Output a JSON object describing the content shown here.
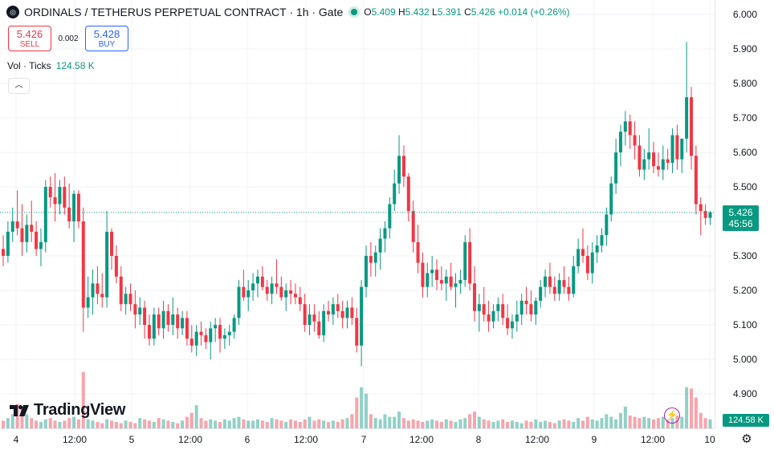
{
  "header": {
    "symbol_icon": "coin-icon",
    "title": "ORDINALS / TETHERUS PERPETUAL CONTRACT · 1h · Gate",
    "ohlc": {
      "o_label": "O",
      "o": "5.409",
      "h_label": "H",
      "h": "5.432",
      "l_label": "L",
      "l": "5.391",
      "c_label": "C",
      "c": "5.426",
      "change": "+0.014 (+0.26%)"
    }
  },
  "trade": {
    "sell_price": "5.426",
    "sell_label": "SELL",
    "spread": "0.002",
    "buy_price": "5.428",
    "buy_label": "BUY"
  },
  "volume": {
    "label": "Vol · Ticks",
    "value": "124.58 K"
  },
  "collapse_icon": "chevron-up-icon",
  "logo": {
    "text": "TradingView",
    "icon": "tradingview-logo-icon"
  },
  "price_tag": {
    "price": "5.426",
    "countdown": "45:56"
  },
  "volume_tag": "124.58 K",
  "settings_icon": "gear-icon",
  "replay_icon": "lightning-icon",
  "colors": {
    "up": "#089981",
    "down": "#f23645",
    "grid": "#f0f3fa",
    "text": "#131722"
  },
  "chart_data": {
    "type": "candlestick",
    "y_axis": {
      "ticks": [
        "6.000",
        "5.900",
        "5.800",
        "5.700",
        "5.600",
        "5.500",
        "5.400",
        "5.300",
        "5.200",
        "5.100",
        "5.000",
        "4.900"
      ],
      "range": [
        4.82,
        6.04
      ]
    },
    "x_axis": {
      "ticks": [
        "4",
        "12:00",
        "5",
        "12:00",
        "6",
        "12:00",
        "7",
        "12:00",
        "8",
        "12:00",
        "9",
        "12:00",
        "10"
      ]
    },
    "candles_ohlc": [
      [
        5.32,
        5.36,
        5.27,
        5.3
      ],
      [
        5.3,
        5.4,
        5.28,
        5.37
      ],
      [
        5.37,
        5.44,
        5.34,
        5.4
      ],
      [
        5.4,
        5.49,
        5.36,
        5.38
      ],
      [
        5.38,
        5.45,
        5.3,
        5.34
      ],
      [
        5.34,
        5.42,
        5.31,
        5.39
      ],
      [
        5.39,
        5.46,
        5.34,
        5.37
      ],
      [
        5.37,
        5.4,
        5.3,
        5.32
      ],
      [
        5.32,
        5.38,
        5.27,
        5.34
      ],
      [
        5.34,
        5.52,
        5.31,
        5.5
      ],
      [
        5.5,
        5.53,
        5.44,
        5.47
      ],
      [
        5.47,
        5.54,
        5.4,
        5.45
      ],
      [
        5.45,
        5.52,
        5.42,
        5.5
      ],
      [
        5.5,
        5.53,
        5.42,
        5.44
      ],
      [
        5.44,
        5.51,
        5.38,
        5.4
      ],
      [
        5.4,
        5.49,
        5.34,
        5.48
      ],
      [
        5.48,
        5.49,
        5.38,
        5.4
      ],
      [
        5.4,
        5.44,
        5.08,
        5.15
      ],
      [
        5.15,
        5.24,
        5.12,
        5.18
      ],
      [
        5.18,
        5.26,
        5.13,
        5.22
      ],
      [
        5.22,
        5.27,
        5.16,
        5.19
      ],
      [
        5.19,
        5.25,
        5.15,
        5.18
      ],
      [
        5.18,
        5.43,
        5.15,
        5.37
      ],
      [
        5.37,
        5.38,
        5.26,
        5.3
      ],
      [
        5.3,
        5.33,
        5.22,
        5.24
      ],
      [
        5.24,
        5.27,
        5.14,
        5.16
      ],
      [
        5.16,
        5.21,
        5.13,
        5.19
      ],
      [
        5.19,
        5.22,
        5.14,
        5.16
      ],
      [
        5.16,
        5.2,
        5.09,
        5.13
      ],
      [
        5.13,
        5.18,
        5.1,
        5.15
      ],
      [
        5.15,
        5.17,
        5.06,
        5.1
      ],
      [
        5.1,
        5.13,
        5.04,
        5.06
      ],
      [
        5.06,
        5.15,
        5.04,
        5.13
      ],
      [
        5.13,
        5.15,
        5.07,
        5.09
      ],
      [
        5.09,
        5.17,
        5.06,
        5.14
      ],
      [
        5.14,
        5.16,
        5.08,
        5.1
      ],
      [
        5.1,
        5.18,
        5.07,
        5.13
      ],
      [
        5.13,
        5.15,
        5.06,
        5.09
      ],
      [
        5.09,
        5.14,
        5.07,
        5.12
      ],
      [
        5.12,
        5.14,
        5.04,
        5.06
      ],
      [
        5.06,
        5.1,
        5.02,
        5.04
      ],
      [
        5.04,
        5.1,
        5.01,
        5.08
      ],
      [
        5.08,
        5.11,
        5.04,
        5.07
      ],
      [
        5.07,
        5.09,
        5.03,
        5.05
      ],
      [
        5.05,
        5.11,
        5.0,
        5.09
      ],
      [
        5.09,
        5.12,
        5.05,
        5.1
      ],
      [
        5.1,
        5.12,
        5.02,
        5.06
      ],
      [
        5.06,
        5.09,
        5.03,
        5.07
      ],
      [
        5.07,
        5.1,
        5.04,
        5.08
      ],
      [
        5.08,
        5.13,
        5.06,
        5.12
      ],
      [
        5.12,
        5.23,
        5.1,
        5.21
      ],
      [
        5.21,
        5.26,
        5.17,
        5.18
      ],
      [
        5.18,
        5.23,
        5.14,
        5.2
      ],
      [
        5.2,
        5.25,
        5.17,
        5.22
      ],
      [
        5.22,
        5.26,
        5.18,
        5.24
      ],
      [
        5.24,
        5.27,
        5.2,
        5.21
      ],
      [
        5.21,
        5.23,
        5.17,
        5.19
      ],
      [
        5.19,
        5.24,
        5.16,
        5.22
      ],
      [
        5.22,
        5.29,
        5.19,
        5.21
      ],
      [
        5.21,
        5.24,
        5.17,
        5.18
      ],
      [
        5.18,
        5.22,
        5.14,
        5.2
      ],
      [
        5.2,
        5.23,
        5.16,
        5.19
      ],
      [
        5.19,
        5.22,
        5.16,
        5.18
      ],
      [
        5.18,
        5.21,
        5.14,
        5.16
      ],
      [
        5.16,
        5.19,
        5.08,
        5.1
      ],
      [
        5.1,
        5.16,
        5.07,
        5.13
      ],
      [
        5.13,
        5.16,
        5.08,
        5.11
      ],
      [
        5.11,
        5.14,
        5.06,
        5.07
      ],
      [
        5.07,
        5.16,
        5.05,
        5.14
      ],
      [
        5.14,
        5.17,
        5.11,
        5.13
      ],
      [
        5.13,
        5.18,
        5.1,
        5.16
      ],
      [
        5.16,
        5.19,
        5.12,
        5.14
      ],
      [
        5.14,
        5.17,
        5.09,
        5.12
      ],
      [
        5.12,
        5.17,
        5.09,
        5.15
      ],
      [
        5.15,
        5.18,
        5.1,
        5.12
      ],
      [
        5.12,
        5.15,
        5.02,
        5.04
      ],
      [
        5.04,
        5.23,
        4.98,
        5.21
      ],
      [
        5.21,
        5.33,
        5.18,
        5.3
      ],
      [
        5.3,
        5.34,
        5.24,
        5.28
      ],
      [
        5.28,
        5.33,
        5.24,
        5.31
      ],
      [
        5.31,
        5.38,
        5.26,
        5.35
      ],
      [
        5.35,
        5.4,
        5.31,
        5.38
      ],
      [
        5.38,
        5.47,
        5.35,
        5.45
      ],
      [
        5.45,
        5.55,
        5.43,
        5.51
      ],
      [
        5.51,
        5.65,
        5.48,
        5.59
      ],
      [
        5.59,
        5.62,
        5.5,
        5.53
      ],
      [
        5.53,
        5.54,
        5.4,
        5.43
      ],
      [
        5.43,
        5.46,
        5.31,
        5.34
      ],
      [
        5.34,
        5.39,
        5.25,
        5.28
      ],
      [
        5.28,
        5.31,
        5.18,
        5.21
      ],
      [
        5.21,
        5.28,
        5.18,
        5.25
      ],
      [
        5.25,
        5.3,
        5.21,
        5.26
      ],
      [
        5.26,
        5.29,
        5.2,
        5.23
      ],
      [
        5.23,
        5.27,
        5.2,
        5.22
      ],
      [
        5.22,
        5.26,
        5.17,
        5.24
      ],
      [
        5.24,
        5.28,
        5.2,
        5.21
      ],
      [
        5.21,
        5.25,
        5.15,
        5.22
      ],
      [
        5.22,
        5.26,
        5.19,
        5.23
      ],
      [
        5.23,
        5.36,
        5.21,
        5.34
      ],
      [
        5.34,
        5.38,
        5.2,
        5.22
      ],
      [
        5.22,
        5.27,
        5.11,
        5.14
      ],
      [
        5.14,
        5.19,
        5.08,
        5.16
      ],
      [
        5.16,
        5.21,
        5.11,
        5.13
      ],
      [
        5.13,
        5.17,
        5.08,
        5.11
      ],
      [
        5.11,
        5.16,
        5.09,
        5.14
      ],
      [
        5.14,
        5.18,
        5.11,
        5.16
      ],
      [
        5.16,
        5.19,
        5.1,
        5.12
      ],
      [
        5.12,
        5.16,
        5.07,
        5.09
      ],
      [
        5.09,
        5.13,
        5.06,
        5.11
      ],
      [
        5.11,
        5.17,
        5.08,
        5.13
      ],
      [
        5.13,
        5.19,
        5.1,
        5.17
      ],
      [
        5.17,
        5.21,
        5.13,
        5.16
      ],
      [
        5.16,
        5.2,
        5.11,
        5.13
      ],
      [
        5.13,
        5.18,
        5.1,
        5.17
      ],
      [
        5.17,
        5.23,
        5.15,
        5.21
      ],
      [
        5.21,
        5.26,
        5.18,
        5.24
      ],
      [
        5.24,
        5.28,
        5.19,
        5.21
      ],
      [
        5.21,
        5.24,
        5.17,
        5.19
      ],
      [
        5.19,
        5.25,
        5.17,
        5.23
      ],
      [
        5.23,
        5.27,
        5.19,
        5.21
      ],
      [
        5.21,
        5.24,
        5.17,
        5.19
      ],
      [
        5.19,
        5.3,
        5.18,
        5.27
      ],
      [
        5.27,
        5.35,
        5.25,
        5.32
      ],
      [
        5.32,
        5.38,
        5.28,
        5.3
      ],
      [
        5.3,
        5.33,
        5.23,
        5.25
      ],
      [
        5.25,
        5.34,
        5.22,
        5.31
      ],
      [
        5.31,
        5.36,
        5.28,
        5.33
      ],
      [
        5.33,
        5.38,
        5.31,
        5.36
      ],
      [
        5.36,
        5.44,
        5.33,
        5.42
      ],
      [
        5.42,
        5.53,
        5.4,
        5.51
      ],
      [
        5.51,
        5.64,
        5.48,
        5.6
      ],
      [
        5.6,
        5.68,
        5.56,
        5.66
      ],
      [
        5.66,
        5.72,
        5.62,
        5.69
      ],
      [
        5.69,
        5.71,
        5.61,
        5.65
      ],
      [
        5.65,
        5.69,
        5.58,
        5.62
      ],
      [
        5.62,
        5.65,
        5.53,
        5.55
      ],
      [
        5.55,
        5.61,
        5.52,
        5.58
      ],
      [
        5.58,
        5.67,
        5.55,
        5.6
      ],
      [
        5.6,
        5.63,
        5.54,
        5.56
      ],
      [
        5.56,
        5.6,
        5.53,
        5.55
      ],
      [
        5.55,
        5.62,
        5.52,
        5.58
      ],
      [
        5.58,
        5.61,
        5.55,
        5.57
      ],
      [
        5.57,
        5.67,
        5.54,
        5.65
      ],
      [
        5.65,
        5.68,
        5.55,
        5.58
      ],
      [
        5.58,
        5.62,
        5.54,
        5.64
      ],
      [
        5.64,
        5.92,
        5.6,
        5.76
      ],
      [
        5.76,
        5.79,
        5.55,
        5.59
      ],
      [
        5.59,
        5.62,
        5.42,
        5.45
      ],
      [
        5.45,
        5.47,
        5.36,
        5.43
      ],
      [
        5.43,
        5.45,
        5.39,
        5.41
      ],
      [
        5.41,
        5.43,
        5.39,
        5.426
      ]
    ],
    "volumes": [
      0.3,
      0.4,
      0.55,
      0.95,
      0.75,
      0.55,
      0.4,
      0.3,
      0.25,
      0.35,
      0.4,
      0.3,
      0.25,
      0.3,
      0.4,
      0.45,
      0.35,
      2.2,
      0.35,
      0.3,
      0.25,
      0.2,
      0.35,
      0.3,
      0.25,
      0.2,
      0.3,
      0.25,
      0.2,
      0.4,
      0.35,
      0.3,
      0.25,
      0.4,
      0.35,
      0.3,
      0.25,
      0.2,
      0.3,
      0.45,
      0.6,
      0.9,
      0.4,
      0.3,
      0.35,
      0.3,
      0.25,
      0.35,
      0.3,
      0.4,
      0.45,
      0.35,
      0.3,
      0.3,
      0.35,
      0.3,
      0.25,
      0.4,
      0.35,
      0.3,
      0.25,
      0.35,
      0.3,
      0.25,
      0.35,
      0.45,
      0.3,
      0.35,
      0.3,
      0.25,
      0.3,
      0.25,
      0.35,
      0.4,
      0.55,
      1.2,
      1.6,
      1.35,
      0.55,
      0.4,
      0.35,
      0.55,
      0.45,
      0.45,
      0.65,
      0.4,
      0.3,
      0.35,
      0.3,
      0.25,
      0.3,
      0.35,
      0.3,
      0.25,
      0.35,
      0.3,
      0.25,
      0.35,
      0.4,
      0.55,
      0.65,
      0.45,
      0.35,
      0.3,
      0.25,
      0.3,
      0.35,
      0.25,
      0.3,
      0.25,
      0.2,
      0.3,
      0.25,
      0.35,
      0.25,
      0.3,
      0.25,
      0.2,
      0.3,
      0.35,
      0.3,
      0.25,
      0.4,
      0.3,
      0.45,
      0.35,
      0.3,
      0.4,
      0.55,
      0.45,
      0.35,
      0.6,
      0.85,
      0.5,
      0.45,
      0.4,
      0.45,
      0.4,
      0.35,
      0.4,
      0.45,
      0.35,
      0.4,
      0.5,
      0.45,
      1.6,
      1.55,
      1.2,
      0.6,
      0.4,
      0.35
    ]
  }
}
